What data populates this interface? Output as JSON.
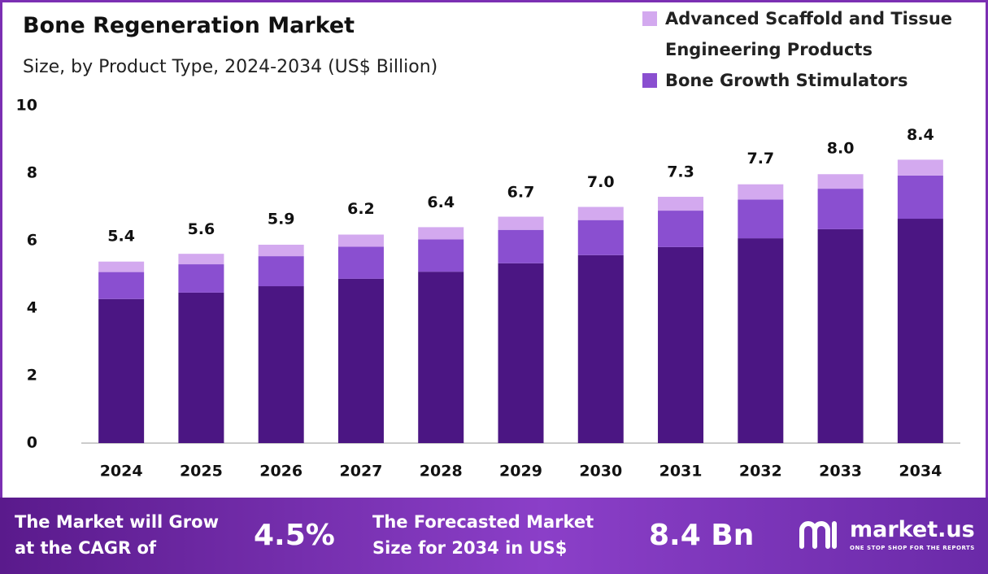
{
  "chart_data": {
    "type": "stacked_bar",
    "title": "Bone Regeneration  Market",
    "subtitle": "Size, by Product Type, 2024-2034 (US$ Billion)",
    "categories": [
      "2024",
      "2025",
      "2026",
      "2027",
      "2028",
      "2029",
      "2030",
      "2031",
      "2032",
      "2033",
      "2034"
    ],
    "series": [
      {
        "color": "#4b1683",
        "values": [
          4.27,
          4.46,
          4.65,
          4.87,
          5.08,
          5.33,
          5.57,
          5.81,
          6.07,
          6.34,
          6.65
        ]
      },
      {
        "name": "Bone Growth Stimulators",
        "color": "#8a4fd0",
        "values": [
          0.8,
          0.84,
          0.89,
          0.95,
          0.96,
          0.99,
          1.04,
          1.08,
          1.15,
          1.2,
          1.28
        ]
      },
      {
        "name": "Advanced Scaffold and Tissue Engineering Products",
        "color": "#d3a9ef",
        "values": [
          0.31,
          0.31,
          0.34,
          0.36,
          0.36,
          0.39,
          0.39,
          0.41,
          0.45,
          0.43,
          0.47
        ]
      }
    ],
    "totals": {
      "values": [
        5.4,
        5.6,
        5.9,
        6.2,
        6.4,
        6.7,
        7.0,
        7.3,
        7.7,
        8.0,
        8.4
      ],
      "value_labels": [
        "5.4",
        "5.6",
        "5.9",
        "6.2",
        "6.4",
        "6.7",
        "7.0",
        "7.3",
        "7.7",
        "8.0",
        "8.4"
      ]
    },
    "ylim": [
      0,
      10
    ],
    "yticks": [
      0,
      2,
      4,
      6,
      8,
      10
    ],
    "grid": false
  },
  "footer": {
    "cagr_text": "The Market will Grow at the CAGR of",
    "cagr_value": "4.5%",
    "forecast_text": "The Forecasted Market Size for 2034 in US$",
    "forecast_value": "8.4 Bn",
    "logo": "market.us",
    "tagline": "ONE STOP SHOP FOR THE REPORTS"
  }
}
